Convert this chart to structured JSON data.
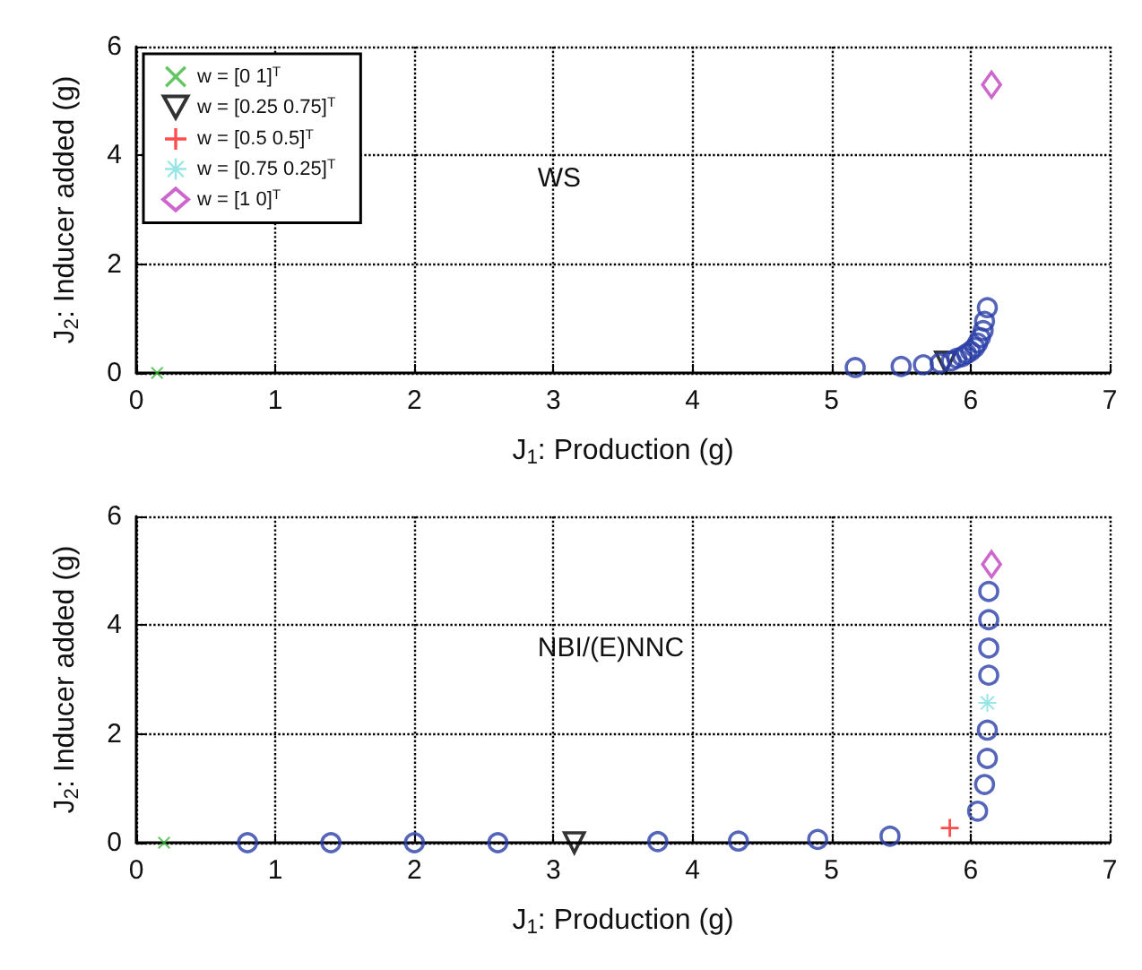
{
  "chart_data": [
    {
      "type": "scatter",
      "xlabel": "J$_{1}$: Production (g)",
      "ylabel": "J$_{2}$: Inducer added (g)",
      "xlim": [
        0,
        7
      ],
      "xticks": [
        0,
        1,
        2,
        3,
        4,
        5,
        6,
        7
      ],
      "ylim": [
        0,
        6
      ],
      "yticks": [
        0,
        2,
        4,
        6
      ],
      "grid": true,
      "legend": "top left",
      "annotations": [
        "WS"
      ],
      "series": [
        {
          "name": "w = [0 1]$^{T}$",
          "color": "#3cb83c",
          "marker": "cross",
          "x": [
            0.15
          ],
          "values": [
            0
          ]
        },
        {
          "name": "w = [0.25 0.75]$^{T}$",
          "color": "#000000",
          "marker": "triangle",
          "x": [
            5.82
          ],
          "values": [
            0.2
          ]
        },
        {
          "name": "w = [0.5 0.5]$^{T}$",
          "color": "#ff2020",
          "marker": "plus"
        },
        {
          "name": "w = [0.75 0.25]$^{T}$",
          "color": "#7fdfdf",
          "marker": "star"
        },
        {
          "name": "w = [1 0]$^{T}$",
          "color": "#c040c0",
          "marker": "diamond",
          "x": [
            6.15
          ],
          "values": [
            5.3
          ]
        },
        {
          "color": "#2a3ea8",
          "marker": "circle",
          "x": [
            5.17,
            5.5,
            5.66,
            5.78,
            5.86,
            5.9,
            5.94,
            5.97,
            6.0,
            6.03,
            6.05,
            6.07,
            6.09,
            6.1,
            6.12
          ],
          "values": [
            0.1,
            0.12,
            0.15,
            0.18,
            0.22,
            0.27,
            0.3,
            0.35,
            0.4,
            0.47,
            0.55,
            0.65,
            0.78,
            0.95,
            1.2
          ]
        }
      ]
    },
    {
      "type": "scatter",
      "xlabel": "J$_{1}$: Production (g)",
      "ylabel": "J$_{2}$: Inducer added (g)",
      "xlim": [
        0,
        7
      ],
      "xticks": [
        0,
        1,
        2,
        3,
        4,
        5,
        6,
        7
      ],
      "ylim": [
        0,
        6
      ],
      "yticks": [
        0,
        2,
        4,
        6
      ],
      "grid": true,
      "annotations": [
        "NBI/(E)NNC"
      ],
      "series": [
        {
          "color": "#3cb83c",
          "marker": "cross",
          "x": [
            0.2
          ],
          "values": [
            0
          ]
        },
        {
          "color": "#000000",
          "marker": "triangle",
          "x": [
            3.15
          ],
          "values": [
            0
          ]
        },
        {
          "color": "#ff2020",
          "marker": "plus",
          "x": [
            5.85
          ],
          "values": [
            0.27
          ]
        },
        {
          "color": "#7fdfdf",
          "marker": "star",
          "x": [
            6.12
          ],
          "values": [
            2.57
          ]
        },
        {
          "color": "#c040c0",
          "marker": "diamond",
          "x": [
            6.15
          ],
          "values": [
            5.12
          ]
        },
        {
          "color": "#2a3ea8",
          "marker": "circle",
          "x": [
            0.8,
            1.4,
            2.0,
            2.6,
            3.75,
            4.33,
            4.9,
            5.42,
            6.05,
            6.1,
            6.12,
            6.12,
            6.13,
            6.13,
            6.13,
            6.13
          ],
          "values": [
            0,
            0,
            0,
            0,
            0.02,
            0.03,
            0.06,
            0.12,
            0.58,
            1.07,
            1.55,
            2.07,
            3.08,
            3.58,
            4.1,
            4.62
          ]
        }
      ]
    }
  ]
}
